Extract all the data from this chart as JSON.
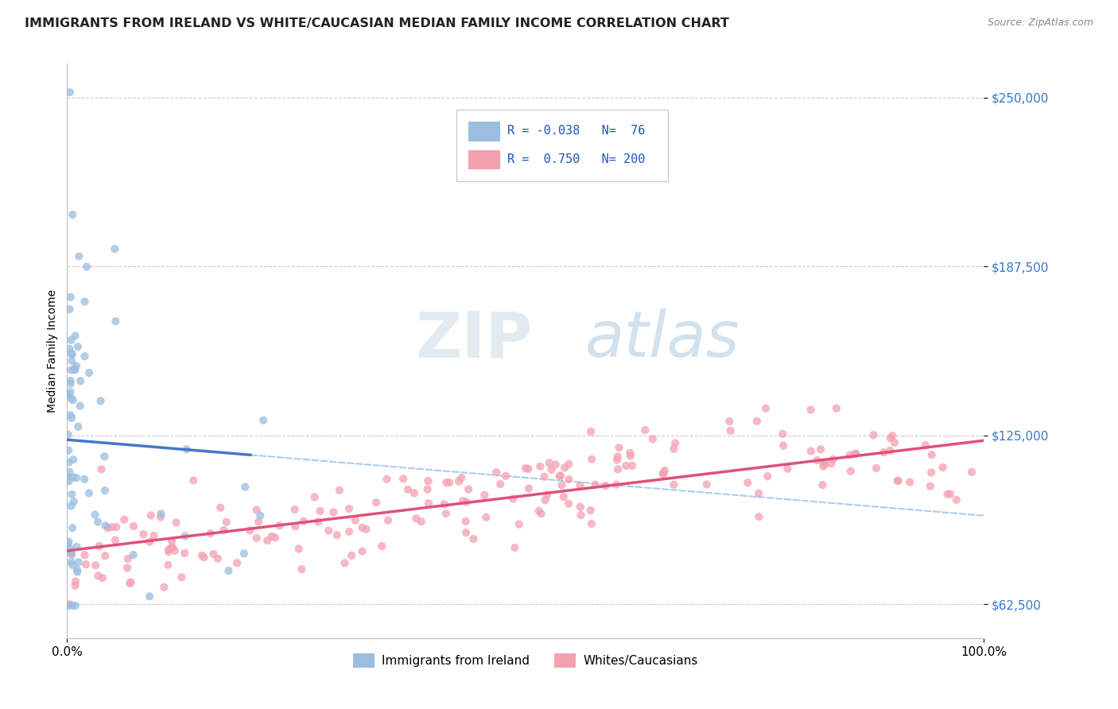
{
  "title": "IMMIGRANTS FROM IRELAND VS WHITE/CAUCASIAN MEDIAN FAMILY INCOME CORRELATION CHART",
  "source": "Source: ZipAtlas.com",
  "ylabel": "Median Family Income",
  "xlim": [
    0,
    1
  ],
  "ylim": [
    50000,
    262500
  ],
  "yticks": [
    62500,
    125000,
    187500,
    250000
  ],
  "ytick_labels": [
    "$62,500",
    "$125,000",
    "$187,500",
    "$250,000"
  ],
  "xtick_labels": [
    "0.0%",
    "100.0%"
  ],
  "legend_r_blue": "-0.038",
  "legend_n_blue": "76",
  "legend_r_pink": "0.750",
  "legend_n_pink": "200",
  "blue_color": "#9abde0",
  "pink_color": "#f4a0b0",
  "trendline_blue_color": "#4477cc",
  "trendline_pink_color": "#e0507a",
  "dashed_blue_color": "#aaccee",
  "watermark_zip_color": "#d8e8f0",
  "watermark_atlas_color": "#c8d8e8"
}
